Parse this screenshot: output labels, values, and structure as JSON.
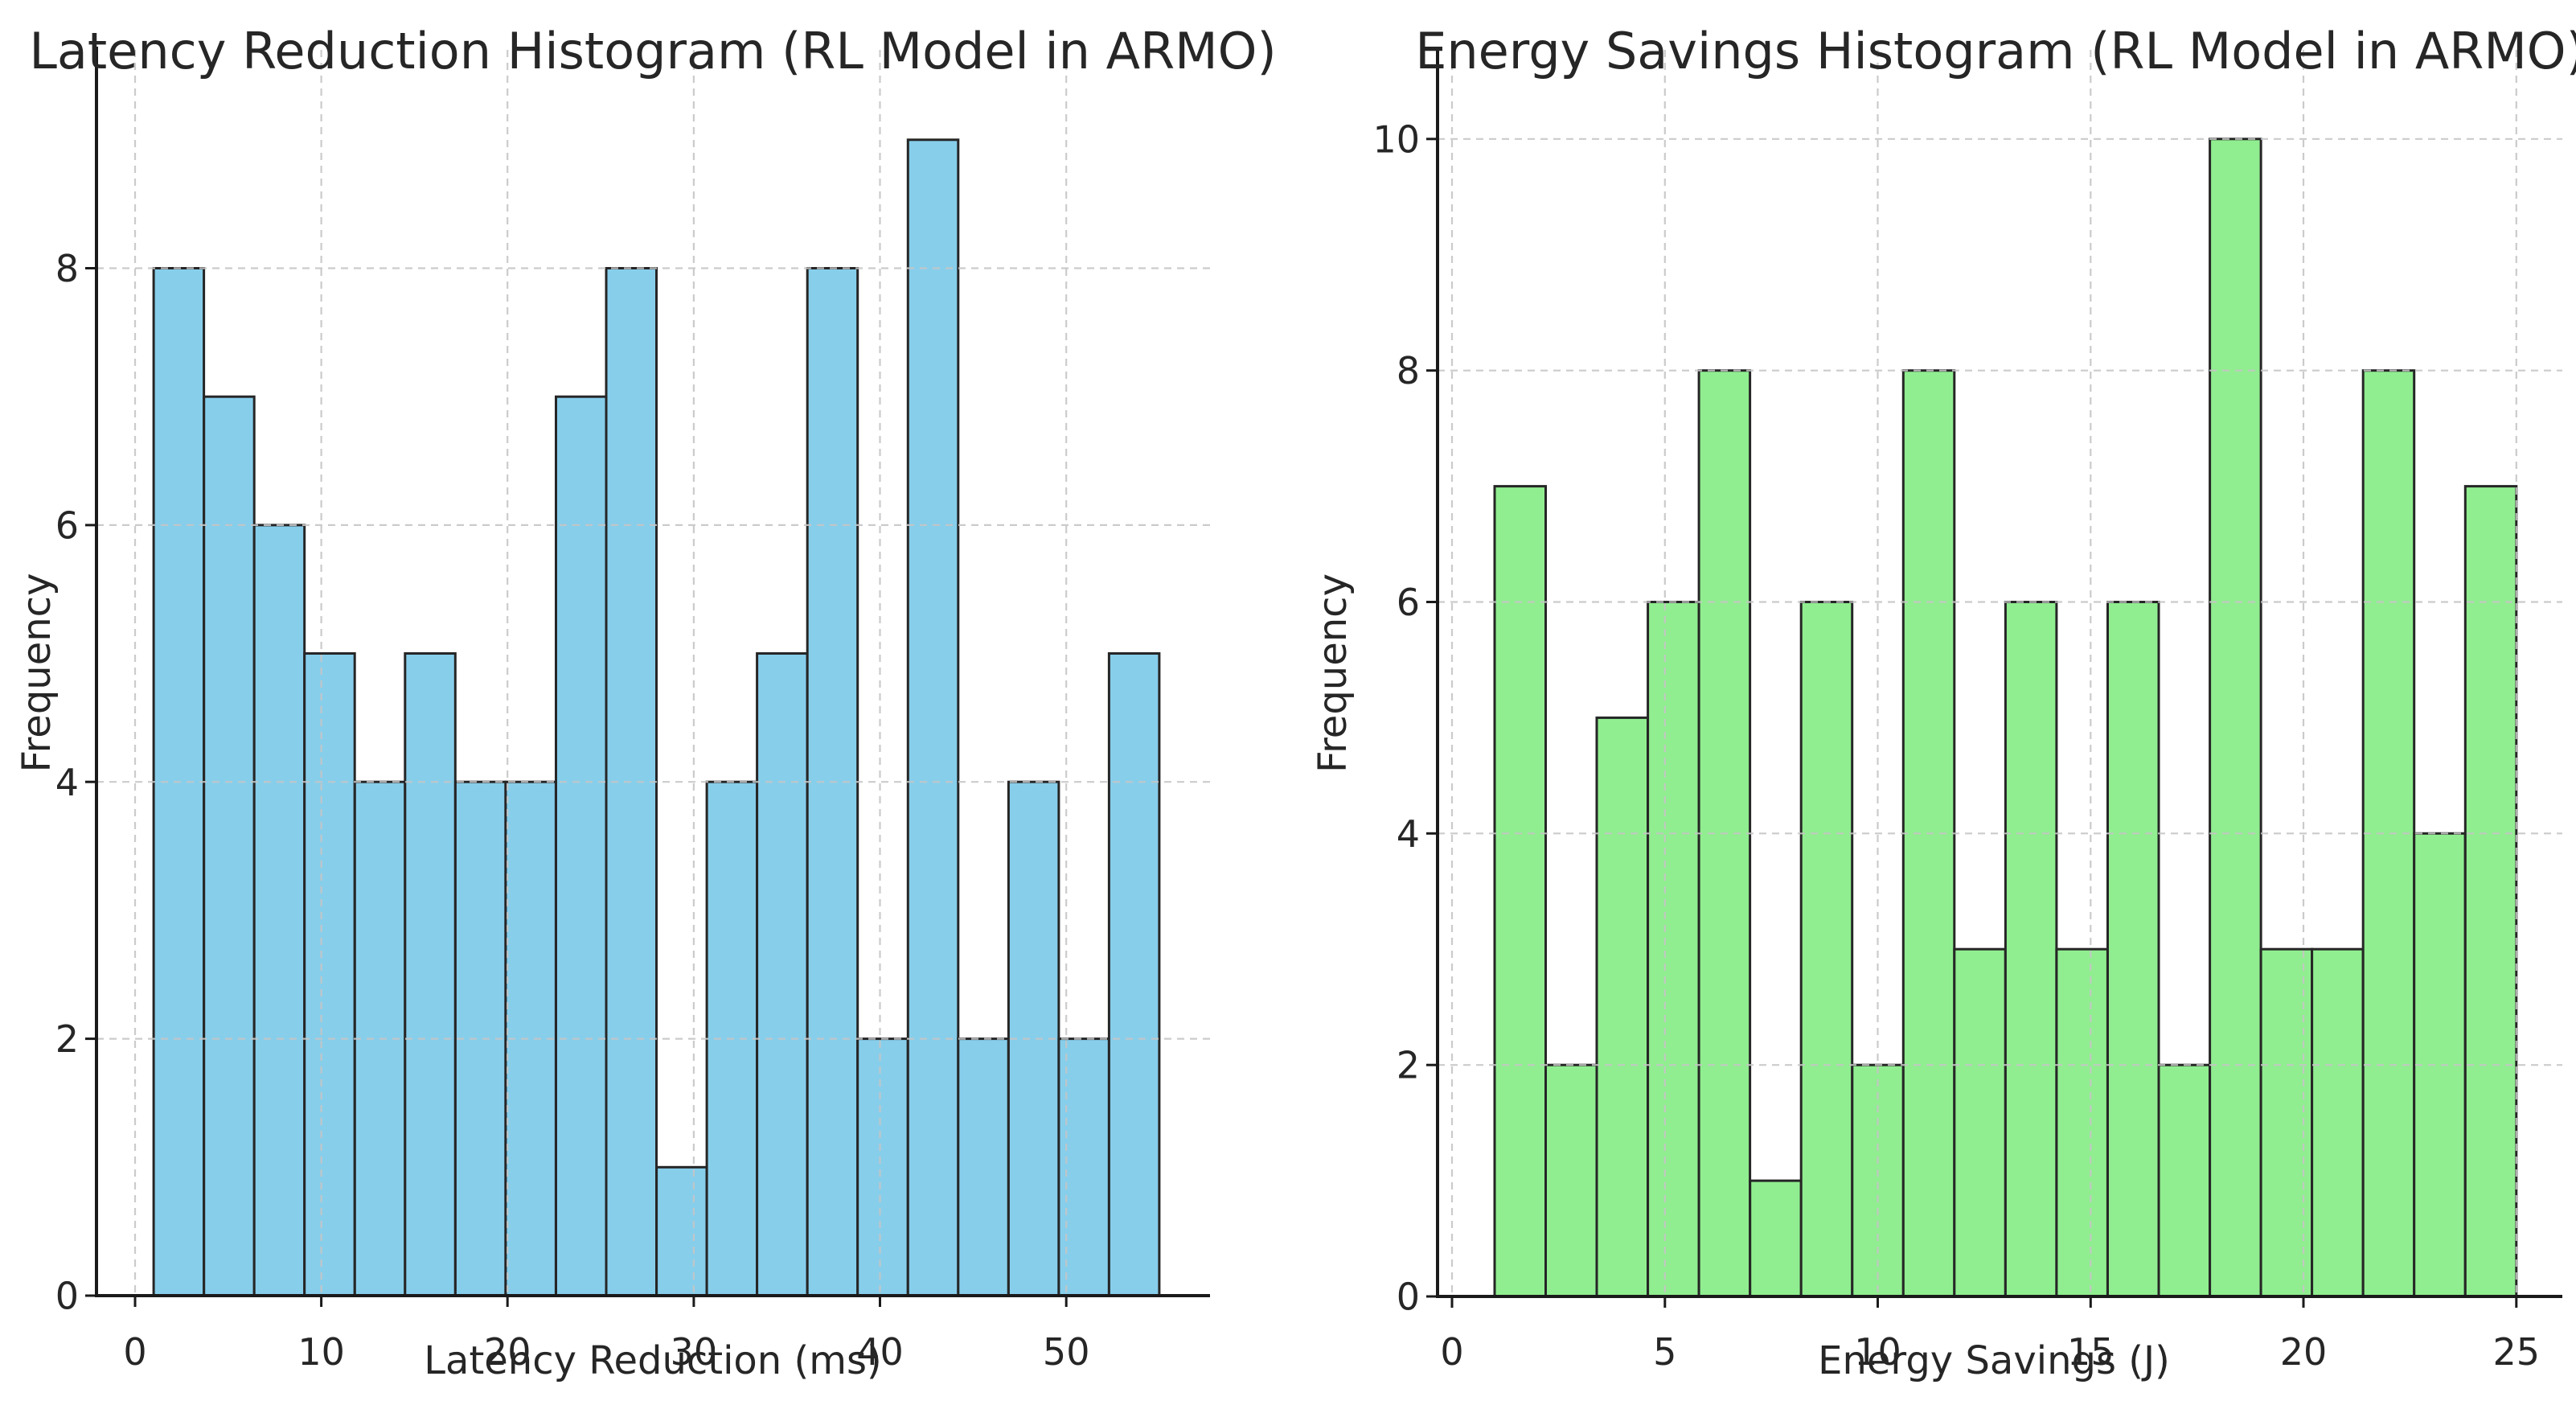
{
  "figure": {
    "background_color": "#ffffff",
    "text_color": "#262626",
    "spine_color": "#1a1a1a",
    "grid_color": "#c6c6c6",
    "tick_color": "#1a1a1a"
  },
  "chart_data": [
    {
      "type": "bar",
      "subtype": "histogram",
      "title": "Latency Reduction Histogram (RL Model in ARMO)",
      "xlabel": "Latency Reduction (ms)",
      "ylabel": "Frequency",
      "bar_color": "#87CEEB",
      "bar_edge_color": "#262626",
      "bin_edges": [
        1.0,
        3.7,
        6.4,
        9.1,
        11.8,
        14.5,
        17.2,
        19.9,
        22.6,
        25.3,
        28.0,
        30.7,
        33.4,
        36.1,
        38.8,
        41.5,
        44.2,
        46.9,
        49.6,
        52.3,
        55.0
      ],
      "counts": [
        8,
        7,
        6,
        5,
        4,
        5,
        4,
        4,
        7,
        8,
        1,
        4,
        5,
        8,
        2,
        9,
        2,
        4,
        2,
        5
      ],
      "xticks": [
        0,
        10,
        20,
        30,
        40,
        50
      ],
      "yticks": [
        0,
        2,
        4,
        6,
        8
      ],
      "xlim": [
        -2.07,
        57.72
      ],
      "ylim": [
        0,
        9.7
      ],
      "grid": true,
      "legend": null
    },
    {
      "type": "bar",
      "subtype": "histogram",
      "title": "Energy Savings Histogram (RL Model in ARMO)",
      "xlabel": "Energy Savings (J)",
      "ylabel": "Frequency",
      "bar_color": "#90EE90",
      "bar_edge_color": "#262626",
      "bin_edges": [
        1.0,
        2.2,
        3.4,
        4.6,
        5.8,
        7.0,
        8.2,
        9.4,
        10.6,
        11.8,
        13.0,
        14.2,
        15.4,
        16.6,
        17.8,
        19.0,
        20.2,
        21.4,
        22.6,
        23.8,
        25.0
      ],
      "counts": [
        7,
        2,
        5,
        6,
        8,
        1,
        6,
        2,
        8,
        3,
        6,
        3,
        6,
        2,
        10,
        3,
        3,
        8,
        4,
        7
      ],
      "xticks": [
        0,
        5,
        10,
        15,
        20,
        25
      ],
      "yticks": [
        0,
        2,
        4,
        6,
        8,
        10
      ],
      "xlim": [
        -0.34,
        26.08
      ],
      "ylim": [
        0,
        10.77
      ],
      "grid": true,
      "legend": null
    }
  ]
}
